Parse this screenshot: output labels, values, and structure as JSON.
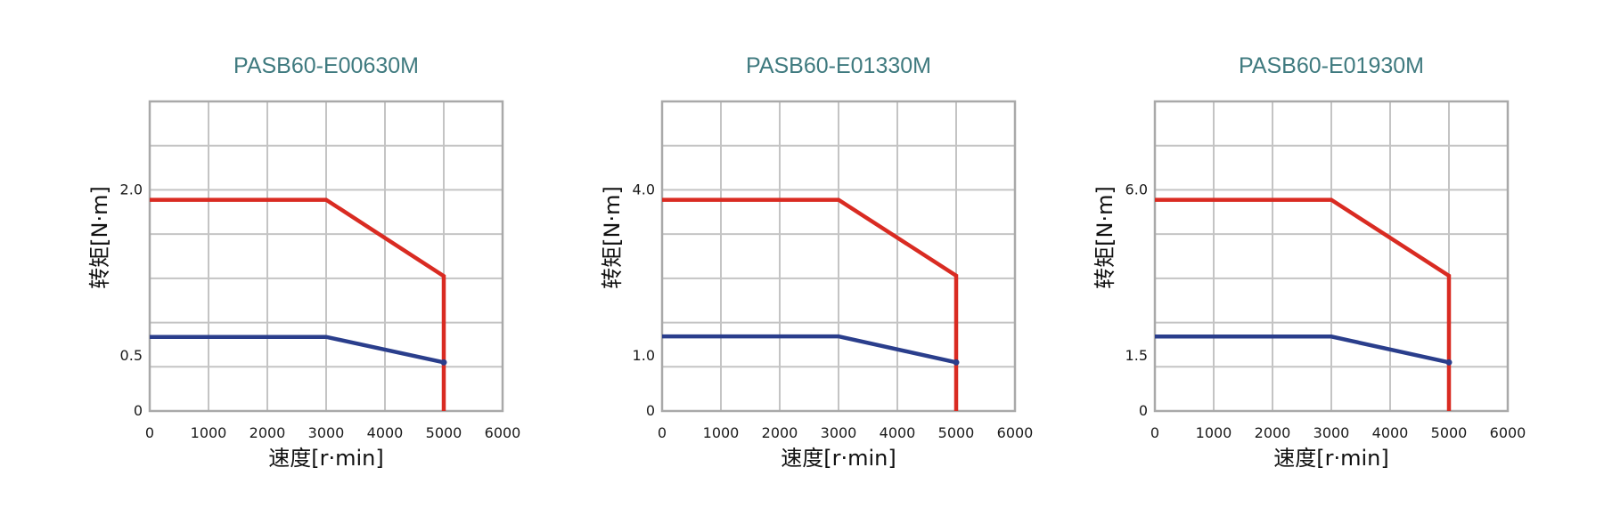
{
  "colors": {
    "title": "#3f7a7f",
    "grid": "#c4c4c4",
    "frame": "#a9a9a9",
    "max_curve": "#d92b22",
    "rated_curve": "#2a3e8c"
  },
  "chart_data": [
    {
      "type": "line",
      "title": "PASB60-E00630M",
      "xlabel": "速度[r·min]",
      "ylabel": "转矩[N·m]",
      "xlim": [
        0,
        6000
      ],
      "ylim": [
        0,
        2.8
      ],
      "x_ticks": [
        "0",
        "1000",
        "2000",
        "3000",
        "4000",
        "5000",
        "6000"
      ],
      "y_ticks": [
        {
          "value": 0,
          "label": "0"
        },
        {
          "value": 0.5,
          "label": "0.5"
        },
        {
          "value": 2.0,
          "label": "2.0"
        }
      ],
      "grid": true,
      "series": [
        {
          "color": "#d92b22",
          "points": [
            [
              0,
              1.91
            ],
            [
              3000,
              1.91
            ],
            [
              5000,
              1.22
            ],
            [
              5000,
              0
            ]
          ]
        },
        {
          "color": "#2a3e8c",
          "points": [
            [
              0,
              0.67
            ],
            [
              3000,
              0.67
            ],
            [
              5000,
              0.44
            ]
          ]
        }
      ]
    },
    {
      "type": "line",
      "title": "PASB60-E01330M",
      "xlabel": "速度[r·min]",
      "ylabel": "转矩[N·m]",
      "xlim": [
        0,
        6000
      ],
      "ylim": [
        0,
        5.6
      ],
      "x_ticks": [
        "0",
        "1000",
        "2000",
        "3000",
        "4000",
        "5000",
        "6000"
      ],
      "y_ticks": [
        {
          "value": 0,
          "label": "0"
        },
        {
          "value": 1.0,
          "label": "1.0"
        },
        {
          "value": 4.0,
          "label": "4.0"
        }
      ],
      "grid": true,
      "series": [
        {
          "color": "#d92b22",
          "points": [
            [
              0,
              3.82
            ],
            [
              3000,
              3.82
            ],
            [
              5000,
              2.45
            ],
            [
              5000,
              0
            ]
          ]
        },
        {
          "color": "#2a3e8c",
          "points": [
            [
              0,
              1.35
            ],
            [
              3000,
              1.35
            ],
            [
              5000,
              0.88
            ]
          ]
        }
      ]
    },
    {
      "type": "line",
      "title": "PASB60-E01930M",
      "xlabel": "速度[r·min]",
      "ylabel": "转矩[N·m]",
      "xlim": [
        0,
        6000
      ],
      "ylim": [
        0,
        8.4
      ],
      "x_ticks": [
        "0",
        "1000",
        "2000",
        "3000",
        "4000",
        "5000",
        "6000"
      ],
      "y_ticks": [
        {
          "value": 0,
          "label": "0"
        },
        {
          "value": 1.5,
          "label": "1.5"
        },
        {
          "value": 6.0,
          "label": "6.0"
        }
      ],
      "grid": true,
      "series": [
        {
          "color": "#d92b22",
          "points": [
            [
              0,
              5.73
            ],
            [
              3000,
              5.73
            ],
            [
              5000,
              3.67
            ],
            [
              5000,
              0
            ]
          ]
        },
        {
          "color": "#2a3e8c",
          "points": [
            [
              0,
              2.02
            ],
            [
              3000,
              2.02
            ],
            [
              5000,
              1.32
            ]
          ]
        }
      ]
    }
  ]
}
